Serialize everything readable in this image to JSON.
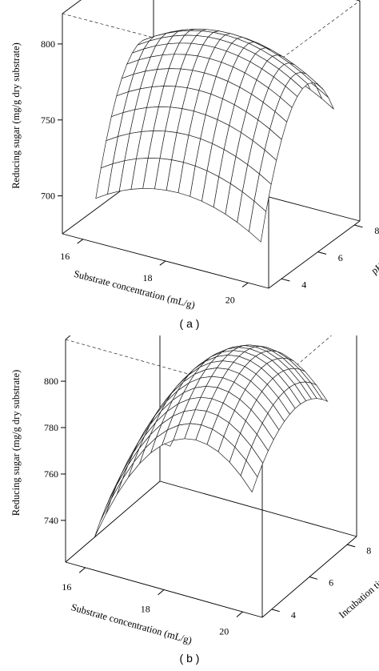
{
  "figure": {
    "panel_a_label": "( a )",
    "panel_b_label": "( b )"
  },
  "chart_data": [
    {
      "type": "surface",
      "panel": "a",
      "zlabel": "Reducing sugar (mg/g dry substrate)",
      "xlabel": "Substrate concentration (mL/g)",
      "ylabel": "pH",
      "xticks": [
        "16",
        "18",
        "20"
      ],
      "yticks": [
        "4",
        "6",
        "8"
      ],
      "zticks": [
        "700",
        "750",
        "800"
      ],
      "xlim": [
        15.5,
        20.5
      ],
      "ylim": [
        3.3,
        8.3
      ],
      "zlim": [
        675,
        820
      ],
      "x_range": [
        16,
        20
      ],
      "y_range": [
        4,
        8
      ],
      "grid": [
        15,
        15
      ],
      "model": {
        "form": "quadratic",
        "z_center": 795,
        "x_center": 18.0,
        "y_center": 6.5,
        "x_curvature": 4.5,
        "y_curvature": 13.0
      }
    },
    {
      "type": "surface",
      "panel": "b",
      "zlabel": "Reducing sugar (mg/g dry substrate)",
      "xlabel": "Substrate concentration (mL/g)",
      "ylabel": "Incubation time (h)",
      "xticks": [
        "16",
        "18",
        "20"
      ],
      "yticks": [
        "4",
        "6",
        "8"
      ],
      "ztick_labels": [
        "740",
        "760",
        "780",
        "800"
      ],
      "xlim": [
        15.5,
        20.5
      ],
      "ylim": [
        3.5,
        8.5
      ],
      "zlim": [
        722,
        818
      ],
      "x_range": [
        16,
        20
      ],
      "y_range": [
        4,
        8
      ],
      "grid": [
        15,
        15
      ],
      "model": {
        "form": "quadratic",
        "z_center": 806,
        "x_center": 18.6,
        "y_center": 6.4,
        "x_curvature": 8.0,
        "y_curvature": 3.5
      }
    }
  ]
}
